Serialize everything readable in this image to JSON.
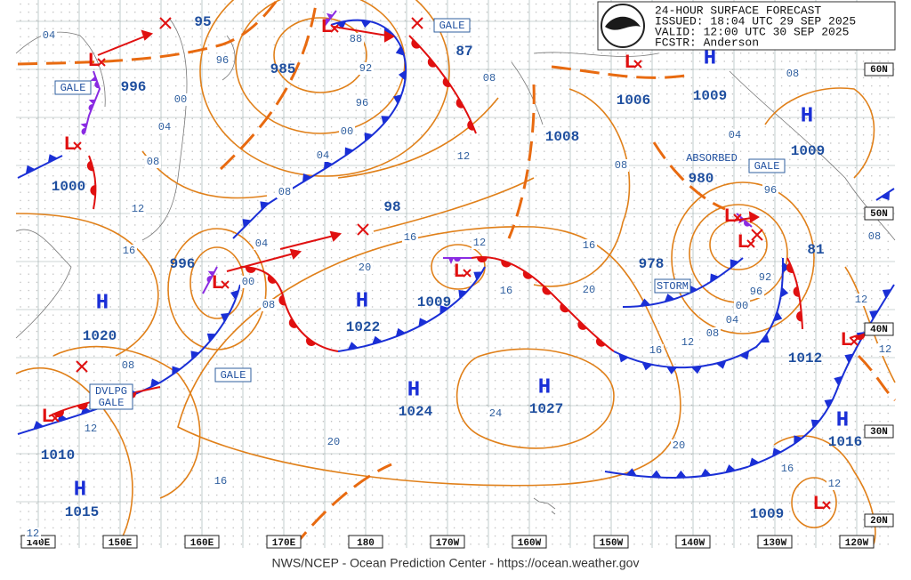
{
  "header": {
    "lines": [
      "24-HOUR SURFACE FORECAST",
      "ISSUED: 18:04 UTC 29 SEP 2025",
      "VALID:  12:00 UTC 30 SEP 2025",
      "FCSTR:  Anderson"
    ]
  },
  "footer": "NWS/NCEP - Ocean Prediction Center - https://ocean.weather.gov",
  "longitude_labels": [
    "140E",
    "150E",
    "160E",
    "170E",
    "180",
    "170W",
    "160W",
    "150W",
    "140W",
    "130W",
    "120W"
  ],
  "latitude_labels": [
    "60N",
    "50N",
    "40N",
    "30N",
    "20N"
  ],
  "centers": [
    {
      "symbol": "H",
      "pressure": "1020"
    },
    {
      "symbol": "H",
      "pressure": "1022"
    },
    {
      "symbol": "H",
      "pressure": "1024"
    },
    {
      "symbol": "H",
      "pressure": "1027"
    },
    {
      "symbol": "H",
      "pressure": "1015"
    },
    {
      "symbol": "H",
      "pressure": "1009"
    },
    {
      "symbol": "H",
      "pressure": "1009"
    },
    {
      "symbol": "H",
      "pressure": "1016"
    },
    {
      "symbol": "L",
      "pressure": "996"
    },
    {
      "symbol": "L",
      "pressure": "1000"
    },
    {
      "symbol": "L",
      "pressure": "985"
    },
    {
      "symbol": "L",
      "pressure": "996"
    },
    {
      "symbol": "L",
      "pressure": "1009"
    },
    {
      "symbol": "L",
      "pressure": "980"
    },
    {
      "symbol": "L",
      "pressure": "978"
    },
    {
      "symbol": "L",
      "pressure": "1006"
    },
    {
      "symbol": "L",
      "pressure": "1010"
    },
    {
      "symbol": "L",
      "pressure": "1009"
    },
    {
      "symbol": "L",
      "pressure": "1012"
    }
  ],
  "pressure_values": [
    "95",
    "87",
    "1008",
    "98",
    "81"
  ],
  "contour_labels": [
    "04",
    "96",
    "00",
    "04",
    "08",
    "12",
    "16",
    "08",
    "04",
    "00",
    "96",
    "92",
    "88",
    "08",
    "12",
    "16",
    "20",
    "12",
    "16",
    "20",
    "16",
    "08",
    "04",
    "96",
    "92",
    "96",
    "00",
    "04",
    "08",
    "12",
    "16",
    "20",
    "24",
    "20",
    "16",
    "12",
    "08",
    "04",
    "00",
    "08",
    "16",
    "12",
    "12",
    "08",
    "12",
    "08",
    "12"
  ],
  "warnings": [
    "GALE",
    "GALE",
    "GALE",
    "GALE",
    "STORM",
    "DVLPG",
    "GALE"
  ],
  "notes": [
    "ABSORBED"
  ]
}
